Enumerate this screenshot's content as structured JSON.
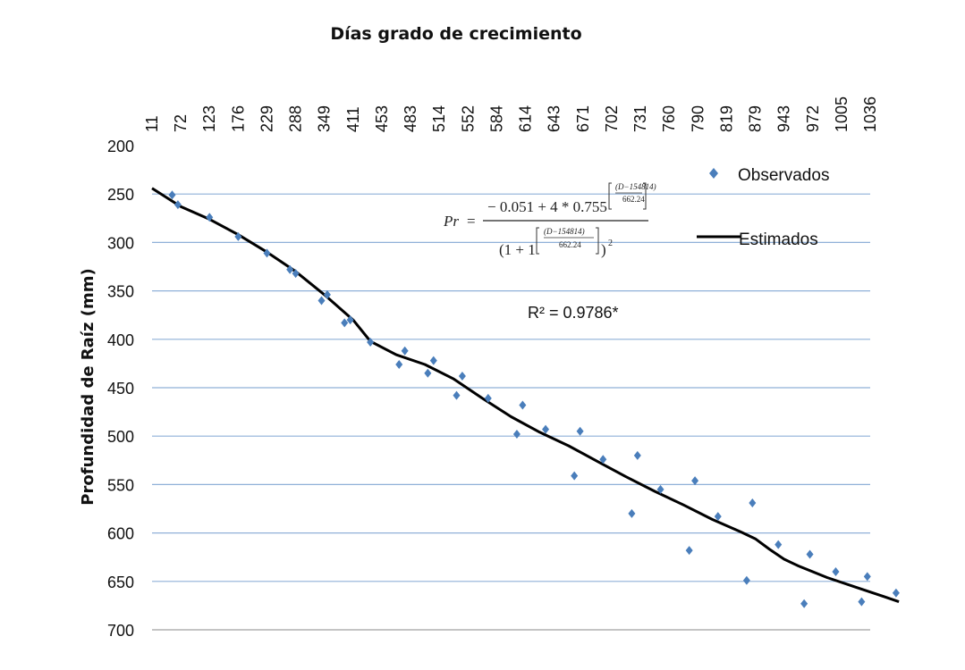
{
  "chart_data": {
    "type": "scatter",
    "title": "Días grado de crecimiento",
    "xlabel": "Días grado de crecimiento",
    "ylabel": "Profundidad de Raíz (mm)",
    "x_tick_labels": [
      "11",
      "72",
      "123",
      "176",
      "229",
      "288",
      "349",
      "411",
      "453",
      "483",
      "514",
      "552",
      "584",
      "614",
      "643",
      "671",
      "702",
      "731",
      "760",
      "790",
      "819",
      "879",
      "943",
      "972",
      "1005",
      "1036"
    ],
    "y_ticks": [
      200,
      250,
      300,
      350,
      400,
      450,
      500,
      550,
      600,
      650,
      700
    ],
    "ylim": [
      200,
      700
    ],
    "y_inverted": true,
    "grid": true,
    "legend_position": "top-right",
    "series": [
      {
        "name": "Observados",
        "kind": "scatter",
        "color": "#4a7ebb",
        "points": [
          [
            0.7,
            251
          ],
          [
            0.9,
            261
          ],
          [
            2.0,
            274
          ],
          [
            3.0,
            294
          ],
          [
            4.0,
            311
          ],
          [
            4.8,
            328
          ],
          [
            5.0,
            332
          ],
          [
            5.9,
            360
          ],
          [
            6.1,
            354
          ],
          [
            6.7,
            383
          ],
          [
            6.9,
            380
          ],
          [
            7.6,
            403
          ],
          [
            8.6,
            426
          ],
          [
            8.8,
            412
          ],
          [
            9.6,
            435
          ],
          [
            9.8,
            422
          ],
          [
            10.6,
            458
          ],
          [
            10.8,
            438
          ],
          [
            11.7,
            461
          ],
          [
            12.7,
            498
          ],
          [
            12.9,
            468
          ],
          [
            13.7,
            493
          ],
          [
            14.7,
            541
          ],
          [
            14.9,
            495
          ],
          [
            15.7,
            524
          ],
          [
            16.7,
            580
          ],
          [
            16.9,
            520
          ],
          [
            17.7,
            555
          ],
          [
            18.7,
            618
          ],
          [
            18.9,
            546
          ],
          [
            19.7,
            583
          ],
          [
            20.7,
            649
          ],
          [
            20.9,
            569
          ],
          [
            21.8,
            612
          ],
          [
            22.7,
            673
          ],
          [
            22.9,
            622
          ],
          [
            23.8,
            640
          ],
          [
            24.7,
            671
          ],
          [
            24.9,
            645
          ],
          [
            25.9,
            662
          ]
        ]
      },
      {
        "name": "Estimados",
        "kind": "line",
        "color": "#000000",
        "points": [
          [
            0,
            244
          ],
          [
            1,
            263
          ],
          [
            2,
            276
          ],
          [
            3,
            292
          ],
          [
            4,
            310
          ],
          [
            5,
            330
          ],
          [
            6,
            354
          ],
          [
            7,
            380
          ],
          [
            7.6,
            402
          ],
          [
            8.5,
            416
          ],
          [
            9.5,
            426
          ],
          [
            10.5,
            441
          ],
          [
            11.5,
            461
          ],
          [
            12.5,
            480
          ],
          [
            13.5,
            496
          ],
          [
            14.5,
            510
          ],
          [
            15.5,
            526
          ],
          [
            16.5,
            542
          ],
          [
            17.5,
            557
          ],
          [
            18.5,
            571
          ],
          [
            19.5,
            586
          ],
          [
            20.5,
            599
          ],
          [
            21,
            606
          ],
          [
            21.5,
            617
          ],
          [
            22,
            627
          ],
          [
            22.5,
            634
          ],
          [
            23.5,
            646
          ],
          [
            24.5,
            656
          ],
          [
            25.5,
            666
          ],
          [
            26,
            671
          ]
        ]
      }
    ],
    "annotations": {
      "equation": {
        "lhs": "Pr",
        "eq": "=",
        "num_main": "− 0.051 + 4 * 0.755",
        "num_exp_num": "(D−154814)",
        "num_exp_den": "662.24",
        "den_main": "(1 + 1",
        "den_exp_num": "(D−154814)",
        "den_exp_den": "662.24",
        "den_close": ")",
        "den_power": "2"
      },
      "r2": "R² = 0.9786*"
    }
  }
}
